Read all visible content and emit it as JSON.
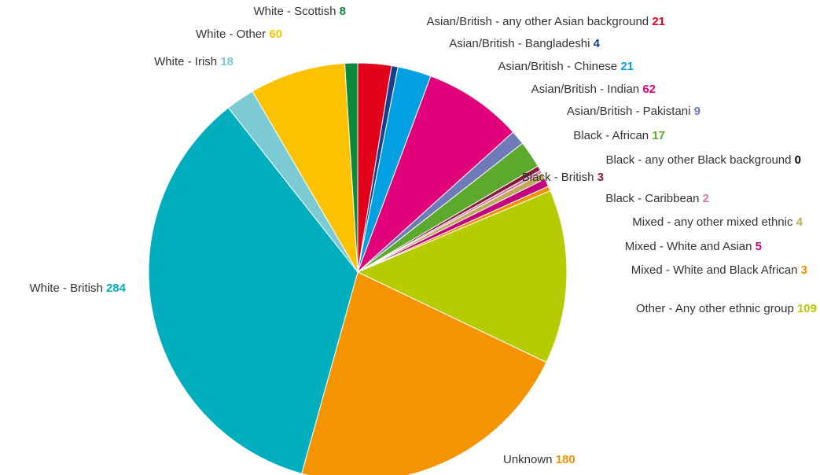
{
  "chart_data": {
    "type": "pie",
    "start_angle_deg": 0,
    "direction": "clockwise",
    "slices": [
      {
        "name": "Asian/British - any other Asian background",
        "value": 21,
        "color": "#e3001b"
      },
      {
        "name": "Asian/British - Bangladeshi",
        "value": 4,
        "color": "#173f8f"
      },
      {
        "name": "Asian/British - Chinese",
        "value": 21,
        "color": "#00a0e3"
      },
      {
        "name": "Asian/British - Indian",
        "value": 62,
        "color": "#e2007a"
      },
      {
        "name": "Asian/British - Pakistani",
        "value": 9,
        "color": "#6f7ab8"
      },
      {
        "name": "Black - African",
        "value": 17,
        "color": "#5ca92e"
      },
      {
        "name": "Black - any other Black background",
        "value": 0,
        "color": "#000000"
      },
      {
        "name": "Black - British",
        "value": 3,
        "color": "#8b1a3c"
      },
      {
        "name": "Black - Caribbean",
        "value": 2,
        "color": "#d17aa6"
      },
      {
        "name": "Mixed - any other mixed ethnic",
        "value": 4,
        "color": "#c0aa5a"
      },
      {
        "name": "Mixed - White and Asian",
        "value": 5,
        "color": "#c3007d"
      },
      {
        "name": "Mixed - White and Black African",
        "value": 3,
        "color": "#f39200"
      },
      {
        "name": "Other - Any other ethnic group",
        "value": 109,
        "color": "#b6cc00"
      },
      {
        "name": "Unknown ",
        "value": 180,
        "color": "#f39400"
      },
      {
        "name": "White - British",
        "value": 284,
        "color": "#00aebd"
      },
      {
        "name": "White - Irish",
        "value": 18,
        "color": "#7ccad3"
      },
      {
        "name": "White - Other",
        "value": 60,
        "color": "#fcc200"
      },
      {
        "name": "White - Scottish",
        "value": 8,
        "color": "#0a8a3a"
      }
    ]
  }
}
